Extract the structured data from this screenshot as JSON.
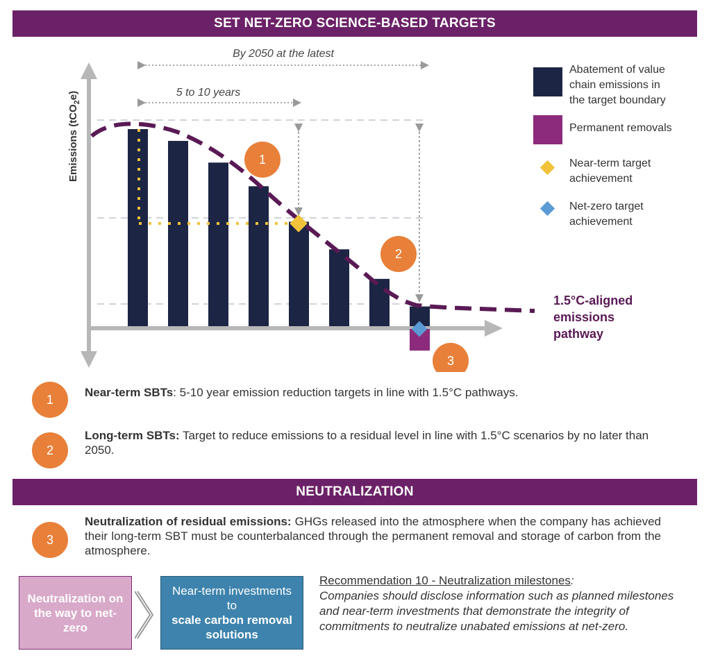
{
  "header_top": "SET NET-ZERO SCIENCE-BASED TARGETS",
  "header_neutral": "NEUTRALIZATION",
  "diagram": {
    "y_axis_label": "Emissions (tCO",
    "y_axis_sub": "2",
    "y_axis_suffix": "e)",
    "span_long": "By 2050 at the latest",
    "span_short": "5 to 10 years",
    "pathway_label": [
      "1.5°C-aligned",
      "emissions",
      "pathway"
    ],
    "markers": [
      "1",
      "2",
      "3"
    ],
    "bars": [
      {
        "height": 1.0,
        "type": "abatement"
      },
      {
        "height": 0.94,
        "type": "abatement"
      },
      {
        "height": 0.83,
        "type": "abatement"
      },
      {
        "height": 0.71,
        "type": "abatement"
      },
      {
        "height": 0.53,
        "type": "abatement"
      },
      {
        "height": 0.39,
        "type": "abatement"
      },
      {
        "height": 0.24,
        "type": "abatement"
      },
      {
        "height": 0.1,
        "type": "abatement"
      }
    ],
    "removal_depth": 0.11,
    "colors": {
      "abatement": "#1c2544",
      "removal": "#8c2b7c",
      "pathway": "#5a1a55",
      "near_term": "#f2c23a",
      "net_zero": "#5b9bd5",
      "accent": "#e8803a",
      "banner": "#6b2167"
    }
  },
  "legend": [
    {
      "icon": "abatement-square-icon",
      "lines": [
        "Abatement of value",
        "chain emissions in",
        "the target boundary"
      ]
    },
    {
      "icon": "removal-square-icon",
      "lines": [
        "Permanent removals"
      ]
    },
    {
      "icon": "yellow-diamond-icon",
      "lines": [
        "Near-term target",
        "achievement"
      ]
    },
    {
      "icon": "blue-diamond-icon",
      "lines": [
        "Net-zero target",
        "achievement"
      ]
    }
  ],
  "statements": [
    {
      "num": "1",
      "bold": "Near-term SBTs",
      "text": ": 5-10 year emission reduction targets in line with 1.5°C pathways."
    },
    {
      "num": "2",
      "bold": "Long-term SBTs:",
      "text": " Target to reduce emissions to a residual level in line with 1.5°C scenarios by no later than 2050."
    },
    {
      "num": "3",
      "bold": "Neutralization of residual emissions:",
      "text": " GHGs released into the atmosphere when the company has achieved their long-term SBT must be counterbalanced through the permanent removal and storage of carbon from the atmosphere."
    }
  ],
  "box_left": "Neutralization on the way to net-zero",
  "box_right_normal": "Near-term investments to",
  "box_right_bold": "scale carbon removal solutions",
  "recommendation_title": "Recommendation 10 - Neutralization milestones",
  "recommendation_colon": ":",
  "recommendation_text": "Companies should disclose information such as planned milestones and near-term investments that demonstrate the integrity of commitments to neutralize unabated emissions at net-zero."
}
